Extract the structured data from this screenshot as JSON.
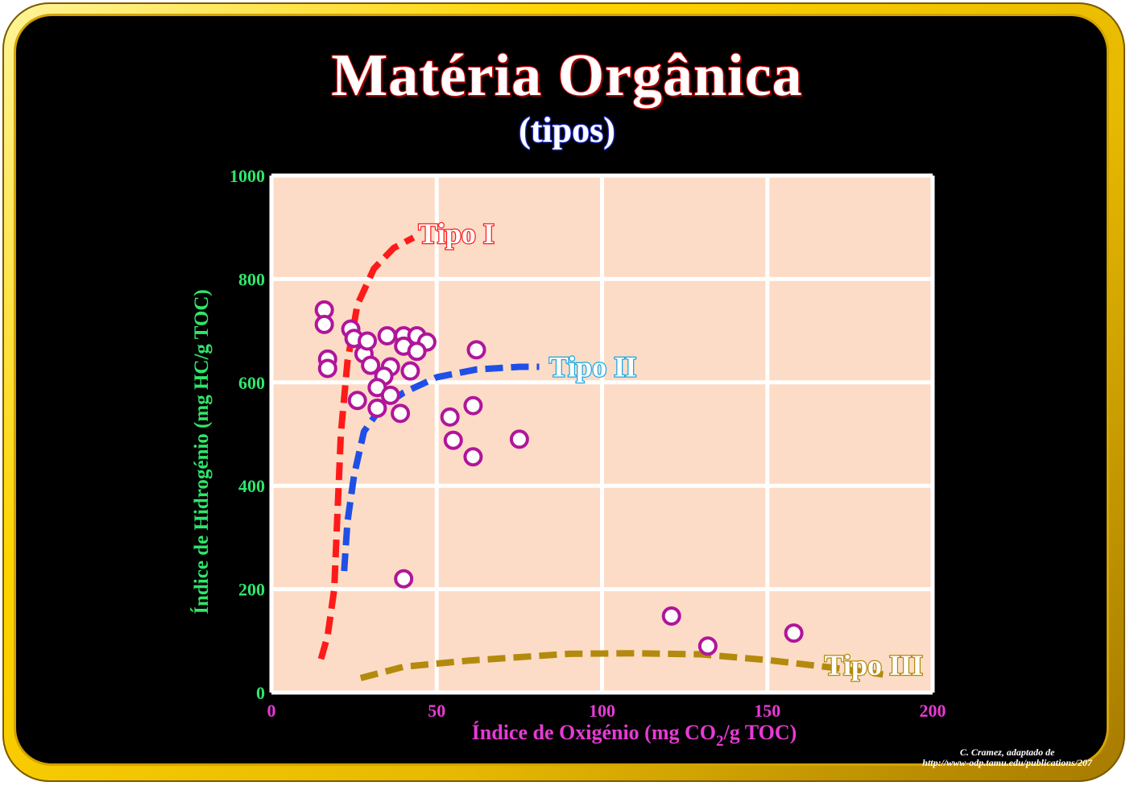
{
  "header": {
    "title": "Matéria Orgânica",
    "subtitle": "(tipos)"
  },
  "credit": {
    "line1": "C. Cramez, adaptado de",
    "line2": "http://www-odp.tamu.edu/publications/207"
  },
  "colors": {
    "plot_bg": "#fcdcc6",
    "grid": "#ffffff",
    "y_axis_text": "#2ee66b",
    "x_axis_text": "#e83ad6",
    "points": "#b0159a",
    "tipo1": "#ff1a1a",
    "tipo2": "#1f4fe6",
    "tipo3": "#b38a0d"
  },
  "chart_data": {
    "type": "scatter",
    "title": "Matéria Orgânica",
    "subtitle": "(tipos)",
    "xlabel": "Índice de Oxigénio (mg CO2/g TOC)",
    "xlabel_parts": [
      "Índice de Oxigénio (mg CO",
      "2",
      "/g TOC)"
    ],
    "ylabel": "Índice de Hidrogénio (mg HC/g TOC)",
    "xlim": [
      0,
      200
    ],
    "ylim": [
      0,
      1000
    ],
    "xticks": [
      "0",
      "50",
      "100",
      "150",
      "200"
    ],
    "yticks": [
      "0",
      "200",
      "400",
      "600",
      "800",
      "1000"
    ],
    "grid": true,
    "points": [
      {
        "x": 16,
        "y": 740
      },
      {
        "x": 16,
        "y": 712
      },
      {
        "x": 17,
        "y": 645
      },
      {
        "x": 17,
        "y": 627
      },
      {
        "x": 24,
        "y": 703
      },
      {
        "x": 25,
        "y": 685
      },
      {
        "x": 28,
        "y": 655
      },
      {
        "x": 29,
        "y": 680
      },
      {
        "x": 30,
        "y": 633
      },
      {
        "x": 35,
        "y": 690
      },
      {
        "x": 40,
        "y": 690
      },
      {
        "x": 44,
        "y": 690
      },
      {
        "x": 47,
        "y": 678
      },
      {
        "x": 40,
        "y": 670
      },
      {
        "x": 44,
        "y": 660
      },
      {
        "x": 42,
        "y": 622
      },
      {
        "x": 36,
        "y": 630
      },
      {
        "x": 34,
        "y": 612
      },
      {
        "x": 32,
        "y": 590
      },
      {
        "x": 36,
        "y": 575
      },
      {
        "x": 26,
        "y": 565
      },
      {
        "x": 32,
        "y": 550
      },
      {
        "x": 39,
        "y": 540
      },
      {
        "x": 62,
        "y": 663
      },
      {
        "x": 61,
        "y": 555
      },
      {
        "x": 54,
        "y": 533
      },
      {
        "x": 55,
        "y": 488
      },
      {
        "x": 61,
        "y": 456
      },
      {
        "x": 75,
        "y": 490
      },
      {
        "x": 40,
        "y": 220
      },
      {
        "x": 121,
        "y": 148
      },
      {
        "x": 132,
        "y": 90
      },
      {
        "x": 158,
        "y": 115
      }
    ],
    "series": [
      {
        "name": "Tipo I",
        "points": [
          [
            15,
            65
          ],
          [
            17,
            110
          ],
          [
            19,
            200
          ],
          [
            20,
            350
          ],
          [
            21,
            500
          ],
          [
            23,
            640
          ],
          [
            26,
            750
          ],
          [
            31,
            820
          ],
          [
            37,
            860
          ],
          [
            43,
            880
          ]
        ]
      },
      {
        "name": "Tipo II",
        "points": [
          [
            22,
            235
          ],
          [
            23,
            330
          ],
          [
            25,
            420
          ],
          [
            28,
            505
          ],
          [
            33,
            550
          ],
          [
            40,
            580
          ],
          [
            50,
            610
          ],
          [
            62,
            625
          ],
          [
            75,
            630
          ],
          [
            81,
            630
          ]
        ]
      },
      {
        "name": "Tipo III",
        "points": [
          [
            27,
            28
          ],
          [
            40,
            50
          ],
          [
            60,
            62
          ],
          [
            90,
            75
          ],
          [
            110,
            76
          ],
          [
            130,
            74
          ],
          [
            150,
            63
          ],
          [
            170,
            48
          ],
          [
            185,
            35
          ]
        ]
      }
    ]
  }
}
